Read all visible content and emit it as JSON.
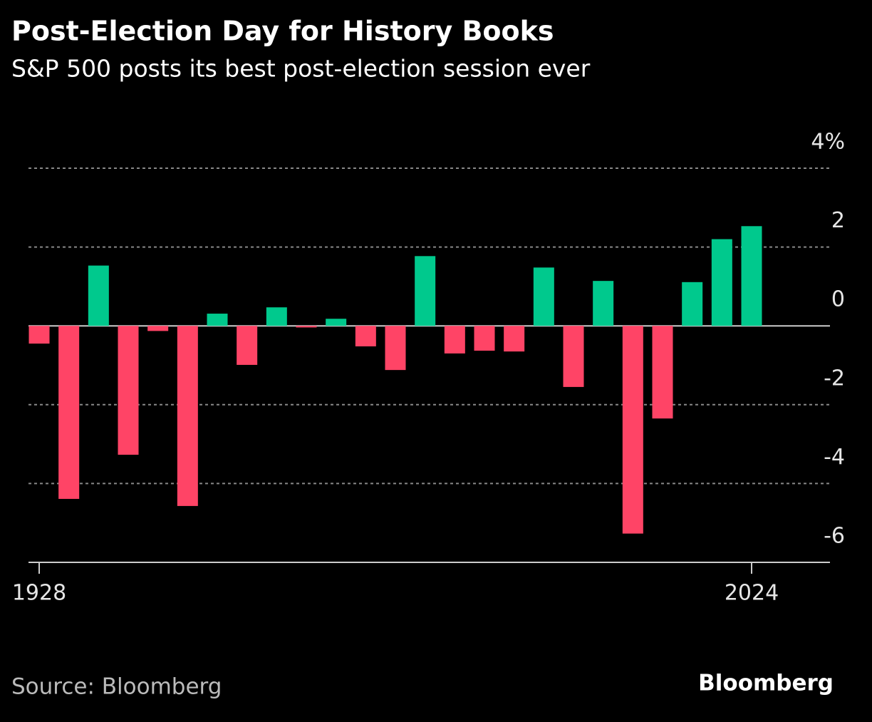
{
  "chart_data": {
    "type": "bar",
    "title": "Post-Election Day for History Books",
    "subtitle": "S&P 500 posts its best post-election session ever",
    "source": "Source: Bloomberg",
    "brand": "Bloomberg",
    "categories": [
      "1928",
      null,
      null,
      null,
      null,
      null,
      null,
      null,
      null,
      null,
      null,
      null,
      null,
      null,
      null,
      null,
      null,
      null,
      null,
      null,
      null,
      null,
      null,
      null,
      "2024"
    ],
    "values": [
      -0.45,
      -4.39,
      1.53,
      -3.27,
      -0.13,
      -4.57,
      0.31,
      -0.99,
      0.47,
      -0.04,
      0.18,
      -0.52,
      -1.12,
      1.77,
      -0.7,
      -0.63,
      -0.65,
      1.48,
      -1.55,
      1.14,
      -5.27,
      -2.35,
      1.11,
      2.2,
      2.53
    ],
    "positive_color": "#00c98d",
    "negative_color": "#ff4466",
    "ylim": [
      -6,
      4
    ],
    "yticks": [
      -6,
      -4,
      -2,
      0,
      2,
      {
        "value": 4,
        "label": "4%"
      }
    ],
    "grid": true
  }
}
